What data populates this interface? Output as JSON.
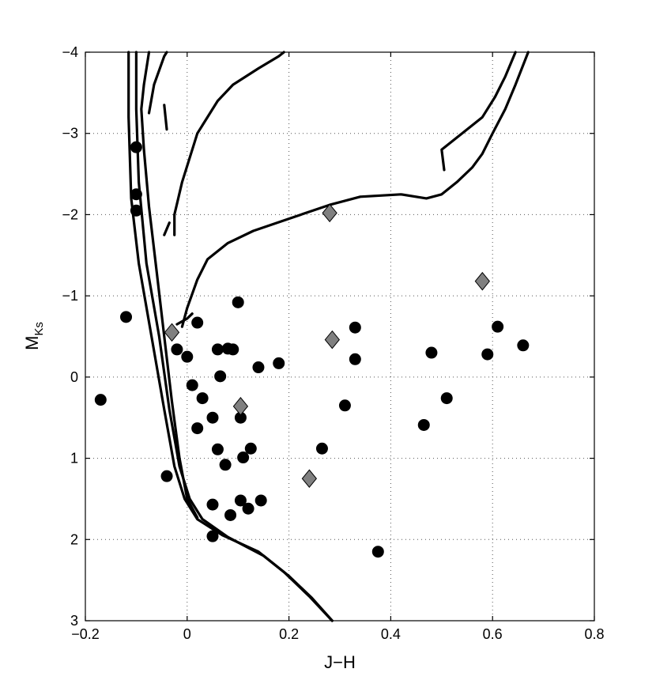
{
  "chart_data": {
    "type": "scatter",
    "title": "",
    "xlabel": "J−H",
    "ylabel_main": "M",
    "ylabel_sub": "Ks",
    "xlim": [
      -0.2,
      0.8
    ],
    "ylim": [
      3,
      -4
    ],
    "y_axis_inverted": true,
    "grid": true,
    "legend": "none",
    "xticks": [
      -0.2,
      0,
      0.2,
      0.4,
      0.6,
      0.8
    ],
    "xtick_labels": [
      "−0.2",
      "0",
      "0.2",
      "0.4",
      "0.6",
      "0.8"
    ],
    "yticks": [
      -4,
      -3,
      -2,
      -1,
      0,
      1,
      2,
      3
    ],
    "ytick_labels": [
      "−4",
      "−3",
      "−2",
      "−1",
      "0",
      "1",
      "2",
      "3"
    ],
    "colors": {
      "circles": "#000000",
      "diamonds": "#808080",
      "lines": "#000000"
    },
    "series": [
      {
        "marker": "circle",
        "points": [
          [
            -0.17,
            0.28
          ],
          [
            -0.12,
            -0.74
          ],
          [
            -0.1,
            -2.83
          ],
          [
            -0.1,
            -2.25
          ],
          [
            -0.1,
            -2.05
          ],
          [
            -0.04,
            1.22
          ],
          [
            -0.02,
            -0.34
          ],
          [
            0.0,
            -0.25
          ],
          [
            0.01,
            0.1
          ],
          [
            0.02,
            -0.67
          ],
          [
            0.02,
            0.63
          ],
          [
            0.03,
            0.26
          ],
          [
            0.05,
            0.5
          ],
          [
            0.05,
            1.57
          ],
          [
            0.05,
            1.96
          ],
          [
            0.06,
            -0.34
          ],
          [
            0.06,
            0.89
          ],
          [
            0.065,
            -0.01
          ],
          [
            0.075,
            1.08
          ],
          [
            0.08,
            -0.35
          ],
          [
            0.085,
            1.7
          ],
          [
            0.09,
            -0.34
          ],
          [
            0.1,
            -0.92
          ],
          [
            0.105,
            0.5
          ],
          [
            0.105,
            1.52
          ],
          [
            0.11,
            0.99
          ],
          [
            0.12,
            1.62
          ],
          [
            0.125,
            0.88
          ],
          [
            0.14,
            -0.12
          ],
          [
            0.145,
            1.52
          ],
          [
            0.18,
            -0.17
          ],
          [
            0.265,
            0.88
          ],
          [
            0.31,
            0.35
          ],
          [
            0.33,
            -0.61
          ],
          [
            0.33,
            -0.22
          ],
          [
            0.375,
            2.15
          ],
          [
            0.465,
            0.59
          ],
          [
            0.48,
            -0.3
          ],
          [
            0.51,
            0.26
          ],
          [
            0.59,
            -0.28
          ],
          [
            0.61,
            -0.62
          ],
          [
            0.66,
            -0.39
          ]
        ]
      },
      {
        "marker": "diamond",
        "points": [
          [
            -0.03,
            -0.55
          ],
          [
            0.105,
            0.36
          ],
          [
            0.24,
            1.25
          ],
          [
            0.28,
            -2.02
          ],
          [
            0.285,
            -0.46
          ],
          [
            0.58,
            -1.18
          ]
        ]
      }
    ],
    "isochrones": [
      [
        [
          -0.115,
          -4.0
        ],
        [
          -0.115,
          -3.2
        ],
        [
          -0.11,
          -2.2
        ],
        [
          -0.095,
          -1.4
        ],
        [
          -0.07,
          -0.5
        ],
        [
          -0.045,
          0.4
        ],
        [
          -0.025,
          1.1
        ],
        [
          -0.005,
          1.5
        ],
        [
          0.02,
          1.75
        ],
        [
          0.07,
          1.95
        ],
        [
          0.14,
          2.15
        ],
        [
          0.19,
          2.4
        ],
        [
          0.24,
          2.7
        ],
        [
          0.285,
          3.0
        ]
      ],
      [
        [
          -0.1,
          -4.0
        ],
        [
          -0.1,
          -3.3
        ],
        [
          -0.095,
          -2.4
        ],
        [
          -0.08,
          -1.4
        ],
        [
          -0.055,
          -0.5
        ],
        [
          -0.035,
          0.4
        ],
        [
          -0.015,
          1.1
        ],
        [
          0.005,
          1.5
        ],
        [
          0.03,
          1.75
        ],
        [
          0.08,
          1.97
        ],
        [
          0.15,
          2.2
        ],
        [
          0.2,
          2.45
        ],
        [
          0.245,
          2.72
        ],
        [
          0.285,
          3.0
        ]
      ],
      [
        [
          -0.075,
          -4.0
        ],
        [
          -0.085,
          -3.6
        ],
        [
          -0.09,
          -3.3
        ],
        [
          -0.085,
          -2.8
        ],
        [
          -0.075,
          -2.1
        ],
        [
          -0.06,
          -1.3
        ],
        [
          -0.045,
          -0.5
        ],
        [
          -0.03,
          0.3
        ],
        [
          -0.015,
          1.0
        ],
        [
          0.0,
          1.5
        ],
        [
          0.02,
          1.73
        ]
      ],
      [
        [
          -0.075,
          -3.25
        ],
        [
          -0.065,
          -3.6
        ],
        [
          -0.045,
          -3.95
        ],
        [
          -0.04,
          -4.0
        ]
      ],
      [
        [
          -0.045,
          -3.35
        ],
        [
          -0.04,
          -3.05
        ]
      ],
      [
        [
          -0.025,
          -1.75
        ],
        [
          -0.025,
          -2.0
        ],
        [
          -0.01,
          -2.4
        ],
        [
          0.02,
          -3.0
        ],
        [
          0.06,
          -3.4
        ],
        [
          0.09,
          -3.6
        ],
        [
          0.14,
          -3.8
        ],
        [
          0.18,
          -3.95
        ],
        [
          0.19,
          -4.0
        ]
      ],
      [
        [
          -0.045,
          -1.75
        ],
        [
          -0.035,
          -1.9
        ]
      ],
      [
        [
          -0.01,
          -0.62
        ],
        [
          0.0,
          -0.85
        ],
        [
          0.02,
          -1.2
        ],
        [
          0.04,
          -1.45
        ],
        [
          0.08,
          -1.65
        ],
        [
          0.13,
          -1.8
        ],
        [
          0.2,
          -1.95
        ],
        [
          0.28,
          -2.12
        ],
        [
          0.34,
          -2.22
        ],
        [
          0.42,
          -2.25
        ],
        [
          0.47,
          -2.2
        ],
        [
          0.5,
          -2.25
        ],
        [
          0.53,
          -2.4
        ],
        [
          0.56,
          -2.58
        ],
        [
          0.58,
          -2.75
        ],
        [
          0.6,
          -3.0
        ],
        [
          0.625,
          -3.3
        ],
        [
          0.645,
          -3.6
        ],
        [
          0.67,
          -4.0
        ]
      ],
      [
        [
          0.505,
          -2.55
        ],
        [
          0.5,
          -2.8
        ],
        [
          0.54,
          -3.0
        ],
        [
          0.58,
          -3.2
        ],
        [
          0.605,
          -3.45
        ],
        [
          0.625,
          -3.7
        ],
        [
          0.645,
          -4.0
        ]
      ],
      [
        [
          -0.02,
          -0.65
        ],
        [
          0.0,
          -0.72
        ],
        [
          0.01,
          -0.78
        ]
      ]
    ]
  }
}
